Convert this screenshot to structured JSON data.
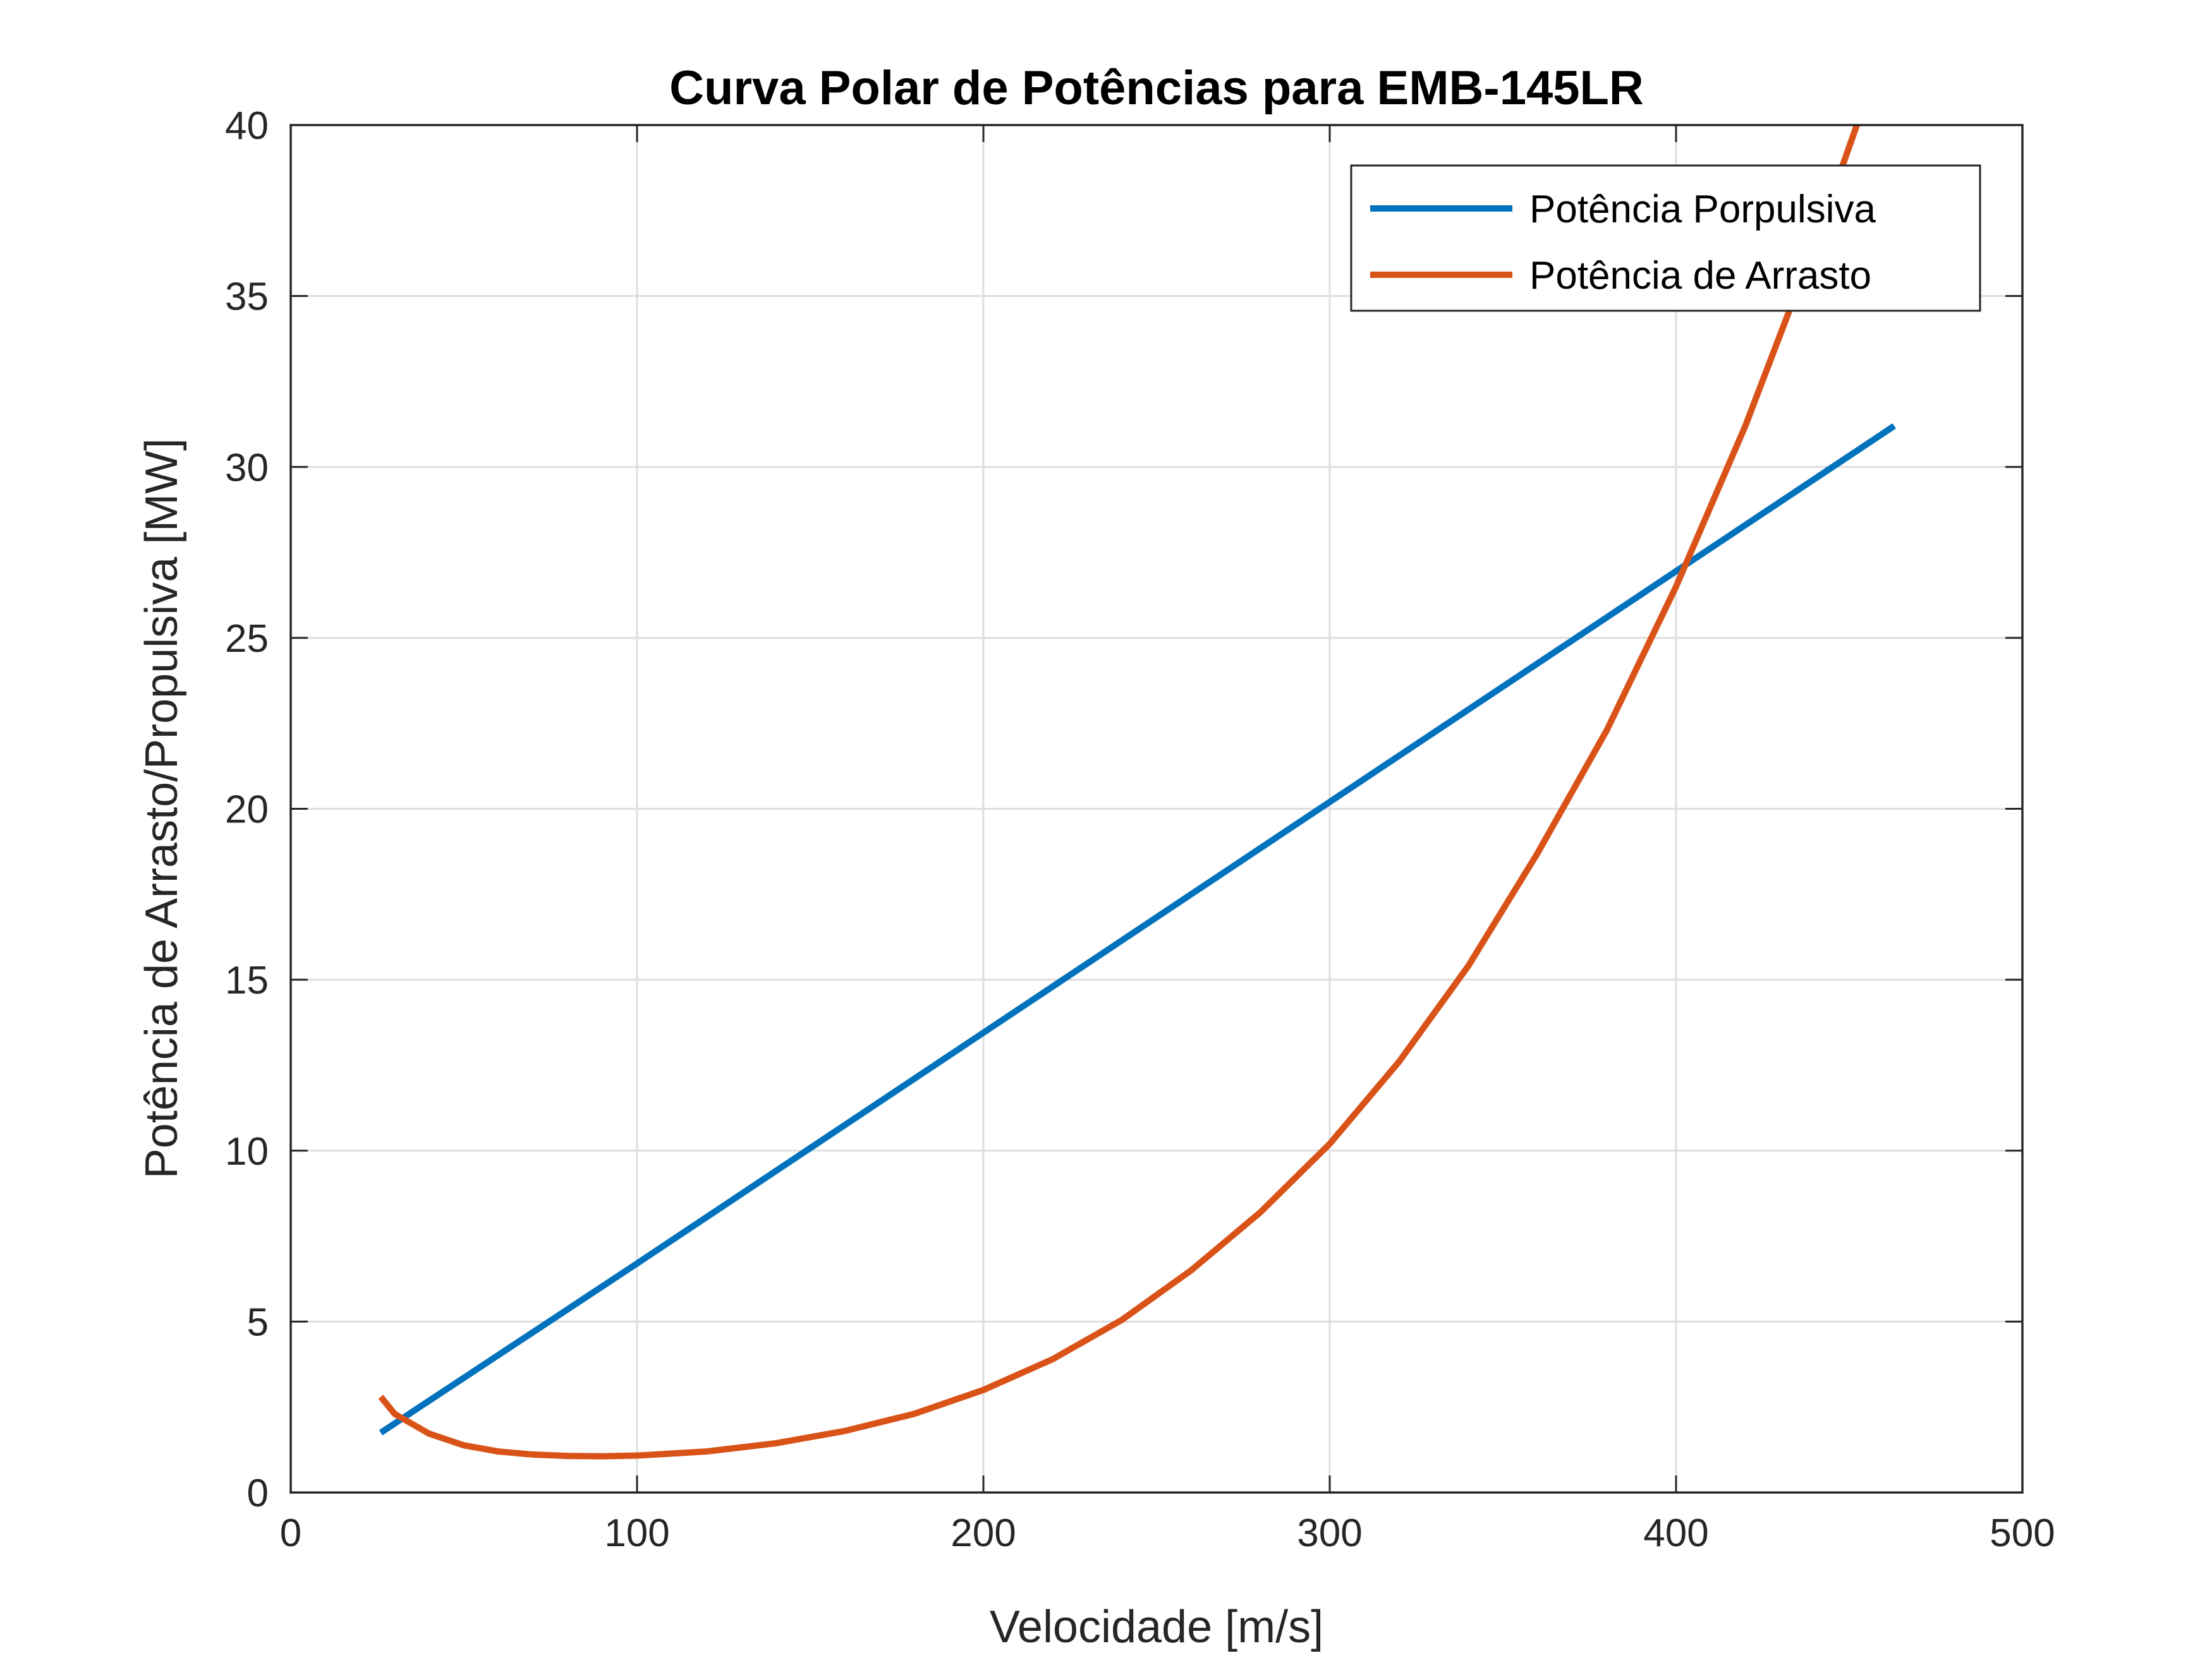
{
  "chart_data": {
    "type": "line",
    "title": "Curva Polar de Potências para EMB-145LR",
    "xlabel": "Velocidade [m/s]",
    "ylabel": "Potência de Arrasto/Propulsiva  [MW]",
    "xlim": [
      0,
      500
    ],
    "ylim": [
      0,
      40
    ],
    "xticks": [
      0,
      100,
      200,
      300,
      400,
      500
    ],
    "yticks": [
      0,
      5,
      10,
      15,
      20,
      25,
      30,
      35,
      40
    ],
    "grid": true,
    "legend_position": "top-right",
    "series": [
      {
        "name": "Potência Porpulsiva",
        "color": "#0072BD",
        "x": [
          26,
          100,
          200,
          300,
          400,
          463
        ],
        "y": [
          1.75,
          6.7,
          13.45,
          20.2,
          26.95,
          31.2
        ]
      },
      {
        "name": "Potência de Arrasto",
        "color": "#D95319",
        "x": [
          26,
          30,
          40,
          50,
          60,
          70,
          80,
          90,
          100,
          120,
          140,
          160,
          180,
          200,
          220,
          240,
          260,
          280,
          300,
          320,
          340,
          360,
          380,
          400,
          420,
          440,
          455
        ],
        "y": [
          2.8,
          2.3,
          1.72,
          1.38,
          1.2,
          1.11,
          1.07,
          1.06,
          1.08,
          1.2,
          1.44,
          1.8,
          2.3,
          3.0,
          3.9,
          5.05,
          6.5,
          8.2,
          10.2,
          12.6,
          15.4,
          18.7,
          22.3,
          26.5,
          31.2,
          36.5,
          40.8
        ]
      }
    ]
  }
}
